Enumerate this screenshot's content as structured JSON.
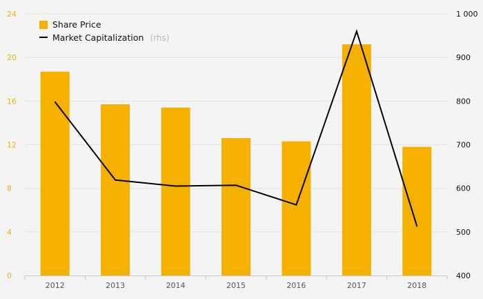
{
  "chart_data": {
    "type": "bar",
    "categories": [
      "2012",
      "2013",
      "2014",
      "2015",
      "2016",
      "2017",
      "2018"
    ],
    "series": [
      {
        "name": "Share Price",
        "type": "bar",
        "axis": "left",
        "values": [
          18.7,
          15.7,
          15.4,
          12.6,
          12.3,
          21.2,
          11.8
        ],
        "color": "#f5b100"
      },
      {
        "name": "Market Capitalization",
        "name_suffix": "(rhs)",
        "type": "line",
        "axis": "right",
        "values": [
          798,
          619,
          605,
          607,
          562,
          960,
          513
        ],
        "color": "#000000"
      }
    ],
    "y_left": {
      "ylim": [
        0,
        24
      ],
      "ticks": [
        "0",
        "4",
        "8",
        "12",
        "16",
        "20",
        "24"
      ]
    },
    "y_right": {
      "ylim": [
        400,
        1000
      ],
      "ticks": [
        "400",
        "500",
        "600",
        "700",
        "800",
        "900",
        "1 000"
      ]
    },
    "grid": true,
    "legend_position": "top-left"
  }
}
